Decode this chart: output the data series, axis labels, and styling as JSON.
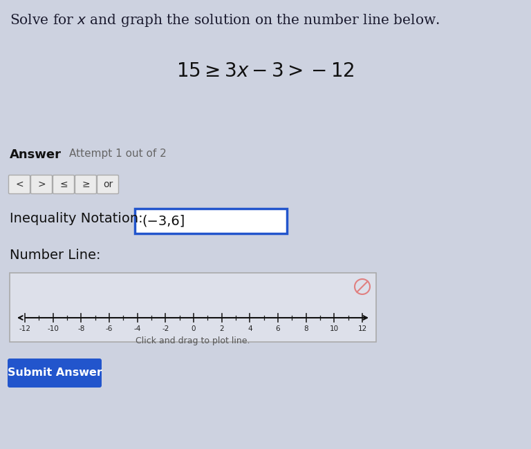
{
  "bg_color": "#cdd2e0",
  "title_text": "Solve for $x$ and graph the solution on the number line below.",
  "equation_text": "$15 \\geq 3x - 3 > -12$",
  "answer_bold": "Answer",
  "answer_light": "Attempt 1 out of 2",
  "buttons": [
    "<",
    ">",
    "≤",
    "≥",
    "or"
  ],
  "inequality_label": "Inequality Notation:",
  "inequality_value": "(−3,6]",
  "number_line_label": "Number Line:",
  "tick_values": [
    -12,
    -10,
    -8,
    -6,
    -4,
    -2,
    0,
    2,
    4,
    6,
    8,
    10,
    12
  ],
  "submit_text": "Submit Answer",
  "submit_bg": "#2255cc",
  "submit_text_color": "#ffffff",
  "number_line_bg": "#dde0ea",
  "box_border_color": "#2255cc",
  "box_bg": "#ffffff",
  "drag_text": "Click and drag to plot line.",
  "fig_width": 7.68,
  "fig_height": 6.5,
  "dpi": 100
}
